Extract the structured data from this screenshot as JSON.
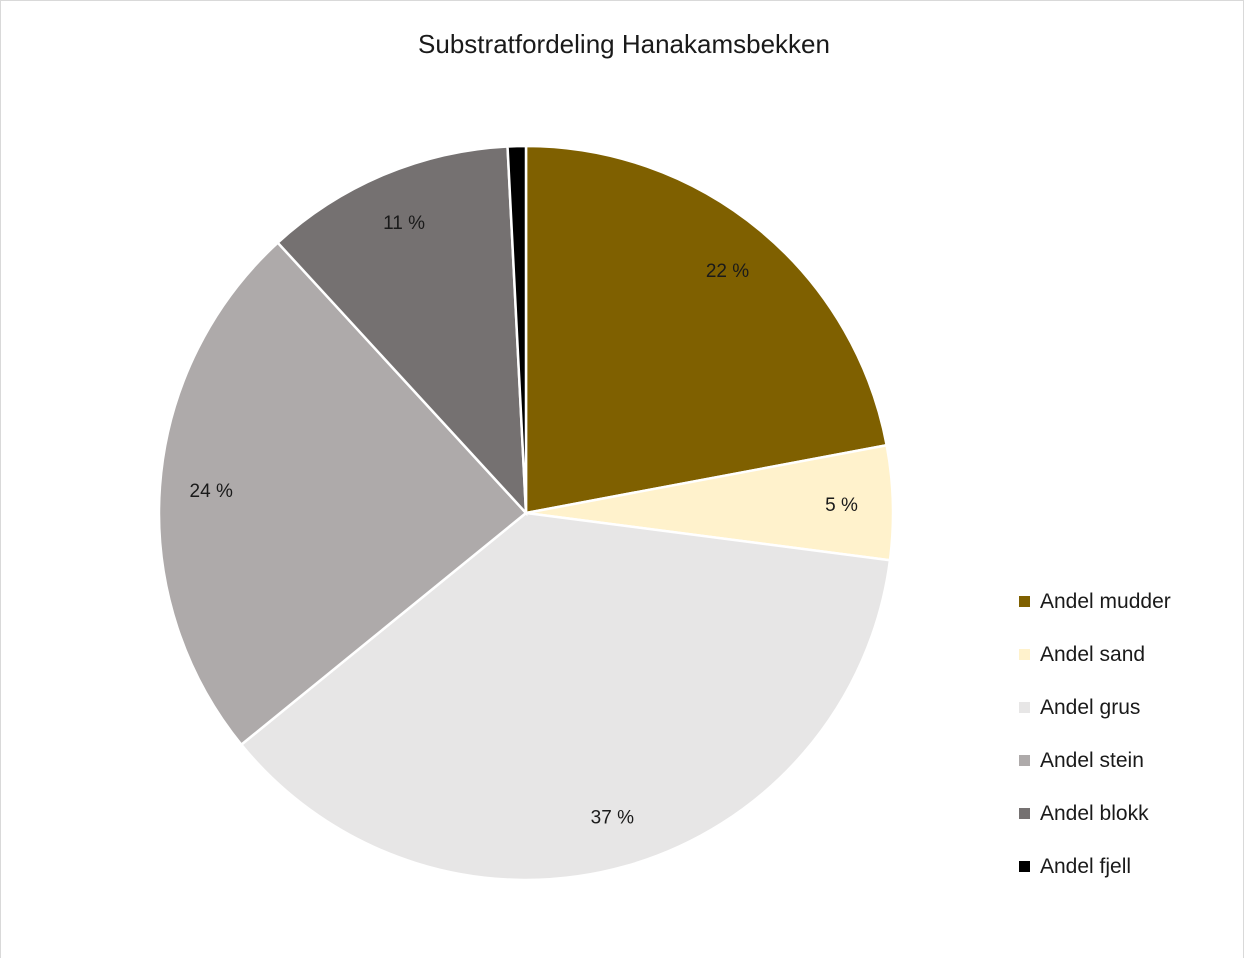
{
  "chart_data": {
    "type": "pie",
    "title": "Substratfordeling Hanakamsbekken",
    "legend_position": "right",
    "slices": [
      {
        "name": "Andel mudder",
        "value": 22,
        "label": "22 %",
        "color": "#7f6000"
      },
      {
        "name": "Andel sand",
        "value": 5,
        "label": "5 %",
        "color": "#fff2cc"
      },
      {
        "name": "Andel grus",
        "value": 37,
        "label": "37 %",
        "color": "#e7e6e6"
      },
      {
        "name": "Andel stein",
        "value": 24,
        "label": "24 %",
        "color": "#aeaaaa"
      },
      {
        "name": "Andel blokk",
        "value": 11,
        "label": "11 %",
        "color": "#757171"
      },
      {
        "name": "Andel fjell",
        "value": 0.8,
        "label": "",
        "color": "#000000"
      }
    ]
  }
}
